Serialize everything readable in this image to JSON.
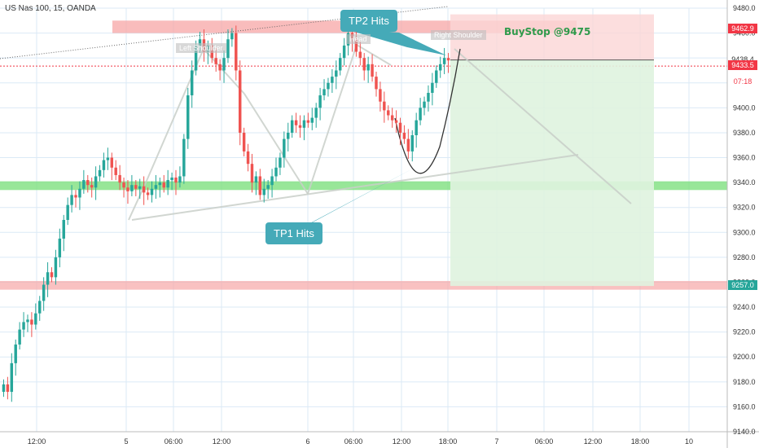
{
  "header": {
    "symbol_title": "US Nas 100, 15, OANDA"
  },
  "annotations": {
    "tp2": "TP2 Hits",
    "tp1": "TP1 Hits",
    "buystop": "BuyStop @9475",
    "left_shoulder": "Left Shoulder",
    "head": "Head",
    "right_shoulder": "Right Shoulder"
  },
  "price_badges": [
    {
      "label": "9462.9",
      "value": 9462.9,
      "bg": "#f23645",
      "fg": "#ffffff"
    },
    {
      "label": "9438.4",
      "value": 9438.4,
      "bg": "#ffffff",
      "fg": "#333333"
    },
    {
      "label": "9433.5",
      "value": 9433.5,
      "bg": "#f23645",
      "fg": "#ffffff"
    },
    {
      "label": "07:18",
      "value": 9420.5,
      "bg": "#ffffff",
      "fg": "#f23645"
    },
    {
      "label": "9257.0",
      "value": 9257.0,
      "bg": "#26a69a",
      "fg": "#ffffff"
    }
  ],
  "colors": {
    "up": "#26a69a",
    "down": "#ef5350",
    "grid": "#dbeaf6",
    "red_zone": "#f7a6a6",
    "green_zone": "#7ee07e",
    "target_box": "#dff3df"
  },
  "chart_data": {
    "type": "candlestick",
    "title": "US Nas 100, 15, OANDA",
    "ylim": [
      9140,
      9480
    ],
    "yticks": [
      9140,
      9160,
      9180,
      9200,
      9220,
      9240,
      9260,
      9280,
      9300,
      9320,
      9340,
      9360,
      9380,
      9400,
      9420,
      9440,
      9460,
      9480
    ],
    "xtick_labels": [
      "12:00",
      "5",
      "06:00",
      "12:00",
      "6",
      "06:00",
      "12:00",
      "18:00",
      "7",
      "06:00",
      "12:00",
      "18:00",
      "10"
    ],
    "grid": true,
    "zones": [
      {
        "kind": "resistance",
        "y_from": 9460,
        "y_to": 9470
      },
      {
        "kind": "support",
        "y_from": 9334,
        "y_to": 9341
      },
      {
        "kind": "support",
        "y_from": 9254,
        "y_to": 9261
      }
    ],
    "trade": {
      "entry": 9475,
      "stop": 9438.4,
      "target": 9257.0
    },
    "close_series": [
      9178,
      9172,
      9195,
      9210,
      9222,
      9228,
      9230,
      9226,
      9235,
      9245,
      9258,
      9268,
      9264,
      9280,
      9295,
      9310,
      9322,
      9330,
      9328,
      9335,
      9342,
      9338,
      9336,
      9345,
      9350,
      9358,
      9360,
      9352,
      9346,
      9340,
      9336,
      9333,
      9338,
      9335,
      9337,
      9332,
      9330,
      9335,
      9338,
      9340,
      9336,
      9342,
      9344,
      9340,
      9345,
      9375,
      9410,
      9430,
      9450,
      9455,
      9445,
      9450,
      9440,
      9435,
      9430,
      9440,
      9455,
      9460,
      9430,
      9380,
      9365,
      9355,
      9340,
      9345,
      9330,
      9335,
      9338,
      9345,
      9352,
      9360,
      9375,
      9380,
      9390,
      9386,
      9384,
      9390,
      9388,
      9392,
      9400,
      9410,
      9415,
      9420,
      9425,
      9430,
      9440,
      9450,
      9460,
      9455,
      9445,
      9440,
      9430,
      9435,
      9425,
      9415,
      9405,
      9398,
      9394,
      9390,
      9388,
      9380,
      9375,
      9365,
      9378,
      9390,
      9400,
      9405,
      9412,
      9420,
      9430,
      9435,
      9440,
      9438
    ]
  }
}
